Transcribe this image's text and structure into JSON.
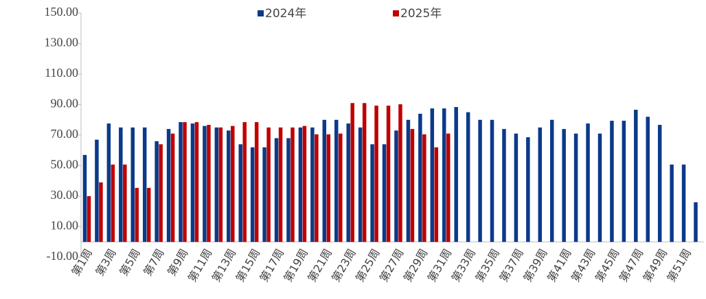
{
  "chart_data": {
    "type": "bar",
    "categories": [
      "第1周",
      null,
      "第3周",
      null,
      "第5周",
      null,
      "第7周",
      null,
      "第9周",
      null,
      "第11周",
      null,
      "第13周",
      null,
      "第15周",
      null,
      "第17周",
      null,
      "第19周",
      null,
      "第21周",
      null,
      "第23周",
      null,
      "第25周",
      null,
      "第27周",
      null,
      "第29周",
      null,
      "第31周",
      null,
      "第33周",
      null,
      "第35周",
      null,
      "第37周",
      null,
      "第39周",
      null,
      "第41周",
      null,
      "第43周",
      null,
      "第45周",
      null,
      "第47周",
      null,
      "第49周",
      null,
      "第51周",
      null
    ],
    "series": [
      {
        "name": "2024年",
        "color": "#0b3a8a",
        "values": [
          57,
          67,
          77.6,
          75,
          75,
          75,
          66,
          74,
          78.5,
          77.6,
          76,
          75,
          73,
          64,
          62,
          62,
          68,
          68,
          75,
          75,
          80,
          80,
          77.6,
          75,
          64,
          64,
          73,
          80,
          84,
          87.5,
          87.5,
          88.4,
          85,
          80,
          80,
          74,
          71,
          68.6,
          75,
          80,
          74,
          71,
          77.6,
          71,
          79.4,
          79.4,
          86.6,
          82,
          76.7,
          50.7,
          50.7,
          26
        ]
      },
      {
        "name": "2025年",
        "color": "#c00000",
        "values": [
          30,
          39,
          50.7,
          50.7,
          35.4,
          35.4,
          64,
          71,
          78.5,
          78.5,
          76.7,
          75,
          76,
          78.5,
          78.5,
          75,
          75,
          75,
          76,
          70.5,
          70.5,
          71,
          91,
          91,
          89.3,
          89.3,
          90.2,
          74,
          70.5,
          62,
          71,
          null,
          null,
          null,
          null,
          null,
          null,
          null,
          null,
          null,
          null,
          null,
          null,
          null,
          null,
          null,
          null,
          null,
          null,
          null,
          null,
          null
        ]
      }
    ],
    "ylim": [
      -10,
      150
    ],
    "yticks": [
      {
        "value": -10,
        "label": "-10.00"
      },
      {
        "value": 10,
        "label": "10.00"
      },
      {
        "value": 30,
        "label": "30.00"
      },
      {
        "value": 50,
        "label": "50.00"
      },
      {
        "value": 70,
        "label": "70.00"
      },
      {
        "value": 90,
        "label": "90.00"
      },
      {
        "value": 110,
        "label": "110.00"
      },
      {
        "value": 130,
        "label": "130.00"
      },
      {
        "value": 150,
        "label": "150.00"
      }
    ],
    "legend": "top"
  }
}
